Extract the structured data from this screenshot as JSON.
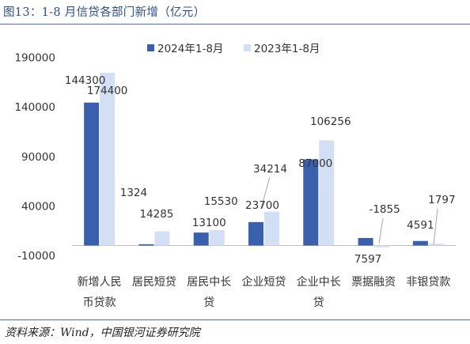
{
  "title": "图13：1-8 月信贷各部门新增（亿元）",
  "source": "资料来源：Wind，中国银河证券研究院",
  "chart_data": {
    "type": "bar",
    "categories": [
      [
        "新增人民",
        "币贷款"
      ],
      [
        "居民短贷"
      ],
      [
        "居民中长",
        "贷"
      ],
      [
        "企业短贷"
      ],
      [
        "企业中长",
        "贷"
      ],
      [
        "票据融资"
      ],
      [
        "非银贷款"
      ]
    ],
    "series": [
      {
        "name": "2024年1-8月",
        "color": "#3a5fad",
        "values": [
          144300,
          1324,
          13100,
          23700,
          87000,
          7597,
          4591
        ]
      },
      {
        "name": "2023年1-8月",
        "color": "#d3dff4",
        "values": [
          174400,
          14285,
          15530,
          34214,
          106256,
          -1855,
          1797
        ]
      }
    ],
    "data_labels": [
      [
        "144300",
        "1324",
        "13100",
        "23700",
        "87000",
        "7597",
        "4591"
      ],
      [
        "174400",
        "14285",
        "15530",
        "34214",
        "106256",
        "-1855",
        "1797"
      ]
    ],
    "yticks": [
      "190000",
      "140000",
      "90000",
      "40000",
      "-10000"
    ],
    "ytick_values": [
      190000,
      140000,
      90000,
      40000,
      -10000
    ],
    "ylim": [
      -10000,
      190000
    ],
    "legend_position": "top",
    "grid": false
  }
}
